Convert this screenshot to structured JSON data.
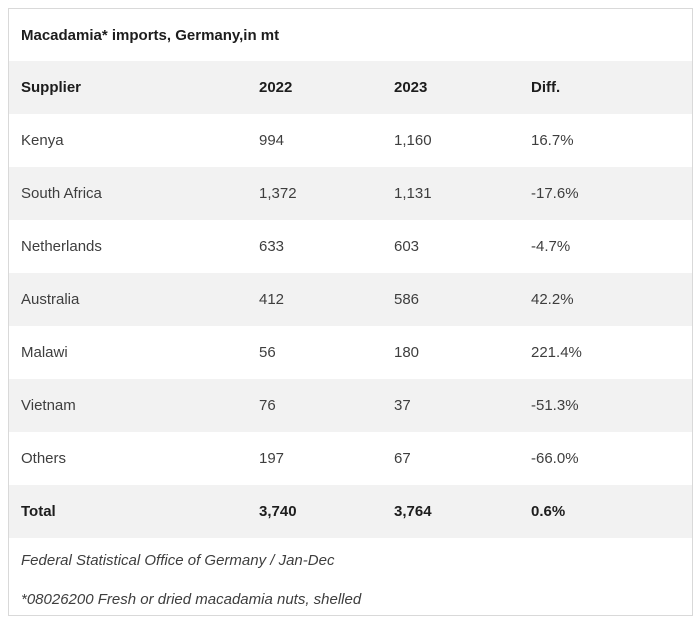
{
  "title": "Macadamia* imports, Germany,in mt",
  "columns": {
    "supplier": "Supplier",
    "y2022": "2022",
    "y2023": "2023",
    "diff": "Diff."
  },
  "rows": [
    {
      "supplier": "Kenya",
      "y2022": "994",
      "y2023": "1,160",
      "diff": "16.7%"
    },
    {
      "supplier": "South Africa",
      "y2022": "1,372",
      "y2023": "1,131",
      "diff": "-17.6%"
    },
    {
      "supplier": "Netherlands",
      "y2022": "633",
      "y2023": "603",
      "diff": "-4.7%"
    },
    {
      "supplier": "Australia",
      "y2022": "412",
      "y2023": "586",
      "diff": "42.2%"
    },
    {
      "supplier": "Malawi",
      "y2022": "56",
      "y2023": "180",
      "diff": "221.4%"
    },
    {
      "supplier": "Vietnam",
      "y2022": "76",
      "y2023": "37",
      "diff": "-51.3%"
    },
    {
      "supplier": "Others",
      "y2022": "197",
      "y2023": "67",
      "diff": "-66.0%"
    }
  ],
  "total": {
    "supplier": "Total",
    "y2022": "3,740",
    "y2023": "3,764",
    "diff": "0.6%"
  },
  "footer": {
    "source_line": "Federal Statistical Office of Germany / Jan-Dec",
    "note_line": "*08026200 Fresh or dried macadamia nuts, shelled"
  },
  "colors": {
    "row_alt_bg": "#f2f2f2",
    "border": "#d9d9d9",
    "text": "#3e3e3e",
    "heading_text": "#1d1d1d"
  },
  "chart_data": {
    "type": "table",
    "title": "Macadamia* imports, Germany,in mt",
    "unit": "mt",
    "columns": [
      "Supplier",
      "2022",
      "2023",
      "Diff."
    ],
    "rows": [
      [
        "Kenya",
        994,
        1160,
        "16.7%"
      ],
      [
        "South Africa",
        1372,
        1131,
        "-17.6%"
      ],
      [
        "Netherlands",
        633,
        603,
        "-4.7%"
      ],
      [
        "Australia",
        412,
        586,
        "42.2%"
      ],
      [
        "Malawi",
        56,
        180,
        "221.4%"
      ],
      [
        "Vietnam",
        76,
        37,
        "-51.3%"
      ],
      [
        "Others",
        197,
        67,
        "-66.0%"
      ],
      [
        "Total",
        3740,
        3764,
        "0.6%"
      ]
    ],
    "source": "Federal Statistical Office of Germany / Jan-Dec",
    "footnote": "*08026200 Fresh or dried macadamia nuts, shelled",
    "layout": {
      "striped": true,
      "stripe_color": "#f2f2f2",
      "header_bold": true,
      "total_row_bold": true
    }
  }
}
